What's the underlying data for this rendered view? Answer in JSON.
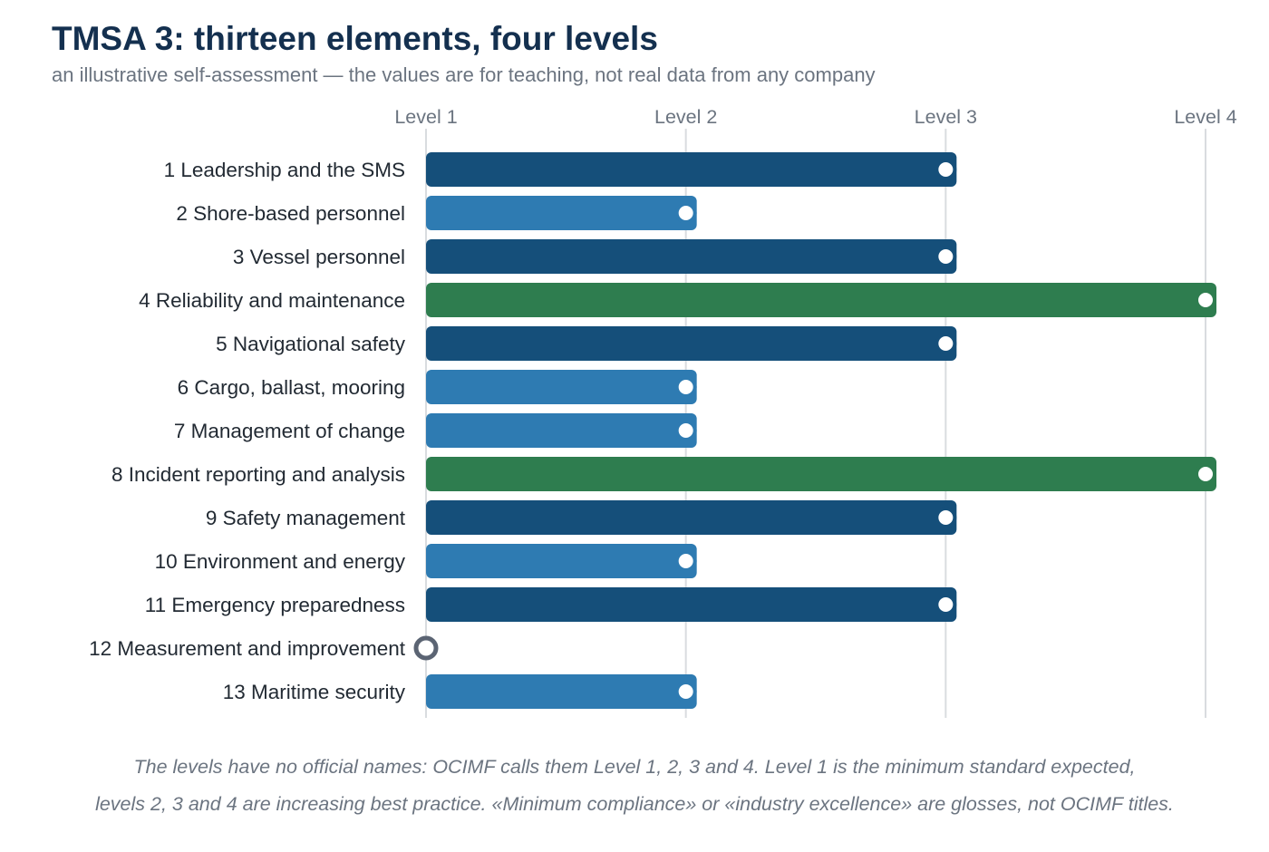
{
  "chart_data": {
    "type": "bar",
    "orientation": "horizontal",
    "title": "TMSA 3: thirteen elements, four levels",
    "subtitle": "an illustrative self-assessment — the values are for teaching, not real data from any company",
    "x_ticks": [
      {
        "value": 1,
        "label": "Level 1"
      },
      {
        "value": 2,
        "label": "Level 2"
      },
      {
        "value": 3,
        "label": "Level 3"
      },
      {
        "value": 4,
        "label": "Level 4"
      }
    ],
    "xlim": [
      1,
      4
    ],
    "grid": "vertical",
    "categories": [
      "1 Leadership and the SMS",
      "2 Shore-based personnel",
      "3 Vessel personnel",
      "4 Reliability and maintenance",
      "5 Navigational safety",
      "6 Cargo, ballast, mooring",
      "7 Management of change",
      "8 Incident reporting and analysis",
      "9 Safety management",
      "10 Environment and energy",
      "11 Emergency preparedness",
      "12 Measurement and improvement",
      "13 Maritime security"
    ],
    "values": [
      3,
      2,
      3,
      4,
      3,
      2,
      2,
      4,
      3,
      2,
      3,
      1,
      2
    ],
    "level_colors": {
      "1": "#5b6473",
      "2": "#2e7bb2",
      "3": "#154f7a",
      "4": "#2e7d4f"
    }
  },
  "footnote": {
    "line1": "The levels have no official names: OCIMF calls them Level 1, 2, 3 and 4. Level 1 is the minimum standard expected,",
    "line2": "levels 2, 3 and 4 are increasing best practice. «Minimum compliance» or «industry excellence» are glosses, not OCIMF titles."
  }
}
